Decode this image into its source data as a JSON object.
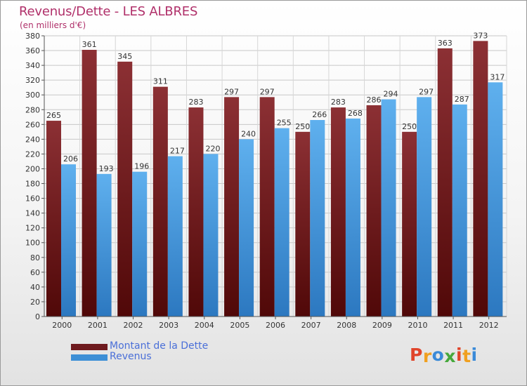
{
  "title": "Revenus/Dette - LES ALBRES",
  "subtitle": "(en milliers d'€)",
  "colors": {
    "debt": "#6e1a1e",
    "revenue": "#3d8fd6",
    "grid": "#c8c8c8",
    "title": "#b0306a"
  },
  "legend": {
    "debt_label": "Montant de la Dette",
    "revenue_label": "Revenus"
  },
  "logo": {
    "text": "Proxiti"
  },
  "chart_data": {
    "type": "bar",
    "categories": [
      "2000",
      "2001",
      "2002",
      "2003",
      "2004",
      "2005",
      "2006",
      "2007",
      "2008",
      "2009",
      "2010",
      "2011",
      "2012"
    ],
    "series": [
      {
        "name": "Montant de la Dette",
        "values": [
          265,
          361,
          345,
          311,
          283,
          297,
          297,
          250,
          283,
          286,
          250,
          363,
          373
        ]
      },
      {
        "name": "Revenus",
        "values": [
          206,
          193,
          196,
          217,
          220,
          240,
          255,
          266,
          268,
          294,
          297,
          287,
          317
        ]
      }
    ],
    "title": "Revenus/Dette - LES ALBRES",
    "ylabel": "(en milliers d'€)",
    "ylim": [
      0,
      380
    ],
    "ytick_step": 20,
    "grid": true,
    "legend_position": "bottom-left"
  }
}
